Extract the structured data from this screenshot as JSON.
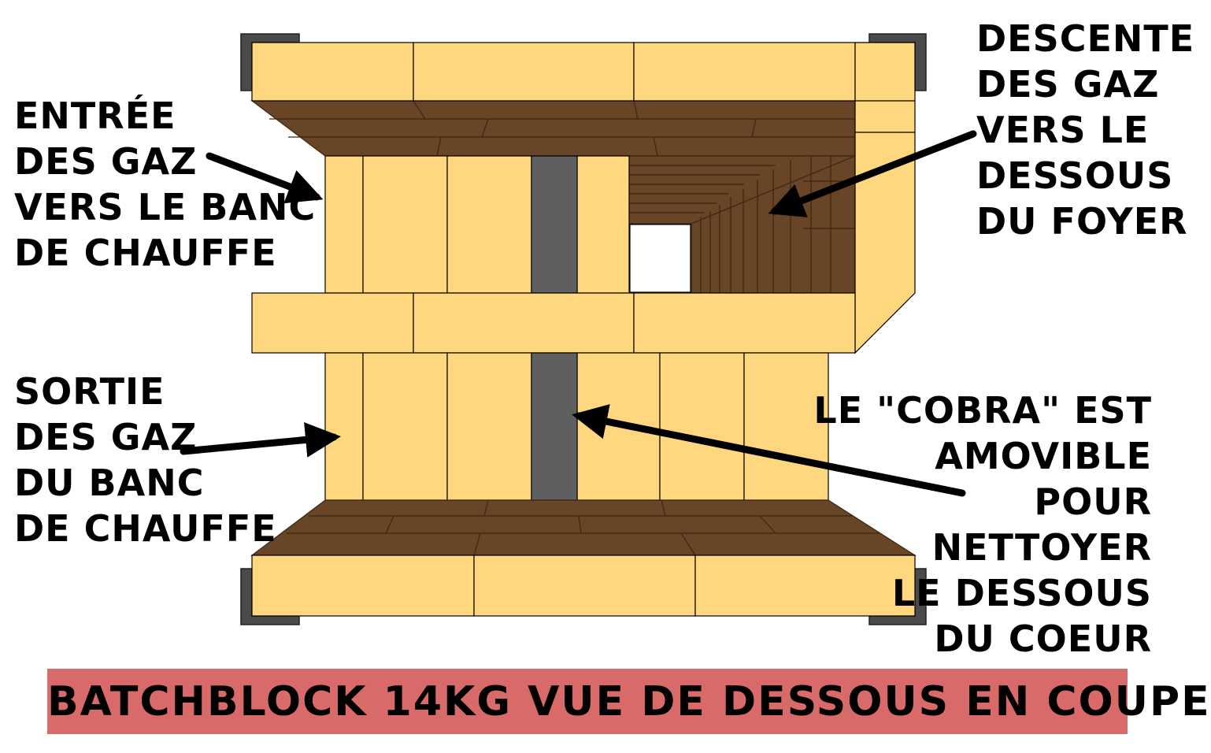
{
  "colors": {
    "brick_light": "#ffd77e",
    "brick_dark": "#674526",
    "cobra": "#5f5f5f",
    "bracket": "#4a4a4a",
    "title_bg": "#d86a6a"
  },
  "labels": {
    "entree": [
      "ENTRÉE",
      "DES GAZ",
      "VERS LE BANC",
      "DE CHAUFFE"
    ],
    "sortie": [
      "SORTIE",
      "DES GAZ",
      "DU BANC",
      "DE CHAUFFE"
    ],
    "descente": [
      "DESCENTE",
      "DES GAZ",
      "VERS LE",
      "DESSOUS",
      "DU FOYER"
    ],
    "cobra": [
      "LE \"COBRA\" EST",
      "AMOVIBLE",
      "POUR",
      "NETTOYER",
      "LE DESSOUS",
      "DU COEUR"
    ]
  },
  "title": "BATCHBLOCK 14KG VUE DE DESSOUS EN COUPE"
}
